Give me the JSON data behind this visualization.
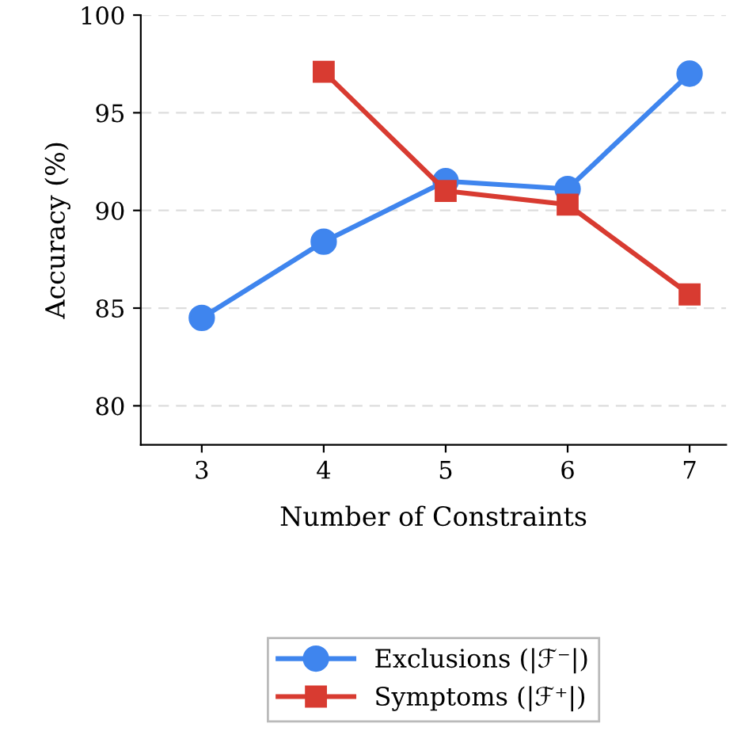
{
  "chart_data": {
    "type": "line",
    "xlabel": "Number of Constraints",
    "ylabel": "Accuracy (%)",
    "series": [
      {
        "name": "Exclusions (|ℱ⁻|)",
        "color": "#3f85ee",
        "marker": "circle",
        "x": [
          3,
          4,
          5,
          6,
          7
        ],
        "values": [
          84.5,
          88.4,
          91.5,
          91.1,
          97.0
        ]
      },
      {
        "name": "Symptoms (|ℱ⁺|)",
        "color": "#d83b31",
        "marker": "square",
        "x": [
          4,
          5,
          6,
          7
        ],
        "values": [
          97.1,
          91.0,
          90.3,
          85.7
        ]
      }
    ],
    "xlim": [
      2.5,
      7.3
    ],
    "xticks": [
      3,
      4,
      5,
      6,
      7
    ],
    "ylim": [
      78,
      100
    ],
    "yticks": [
      80,
      85,
      90,
      95,
      100
    ],
    "grid": "y",
    "legend": "bottom",
    "line_style": "solid"
  }
}
